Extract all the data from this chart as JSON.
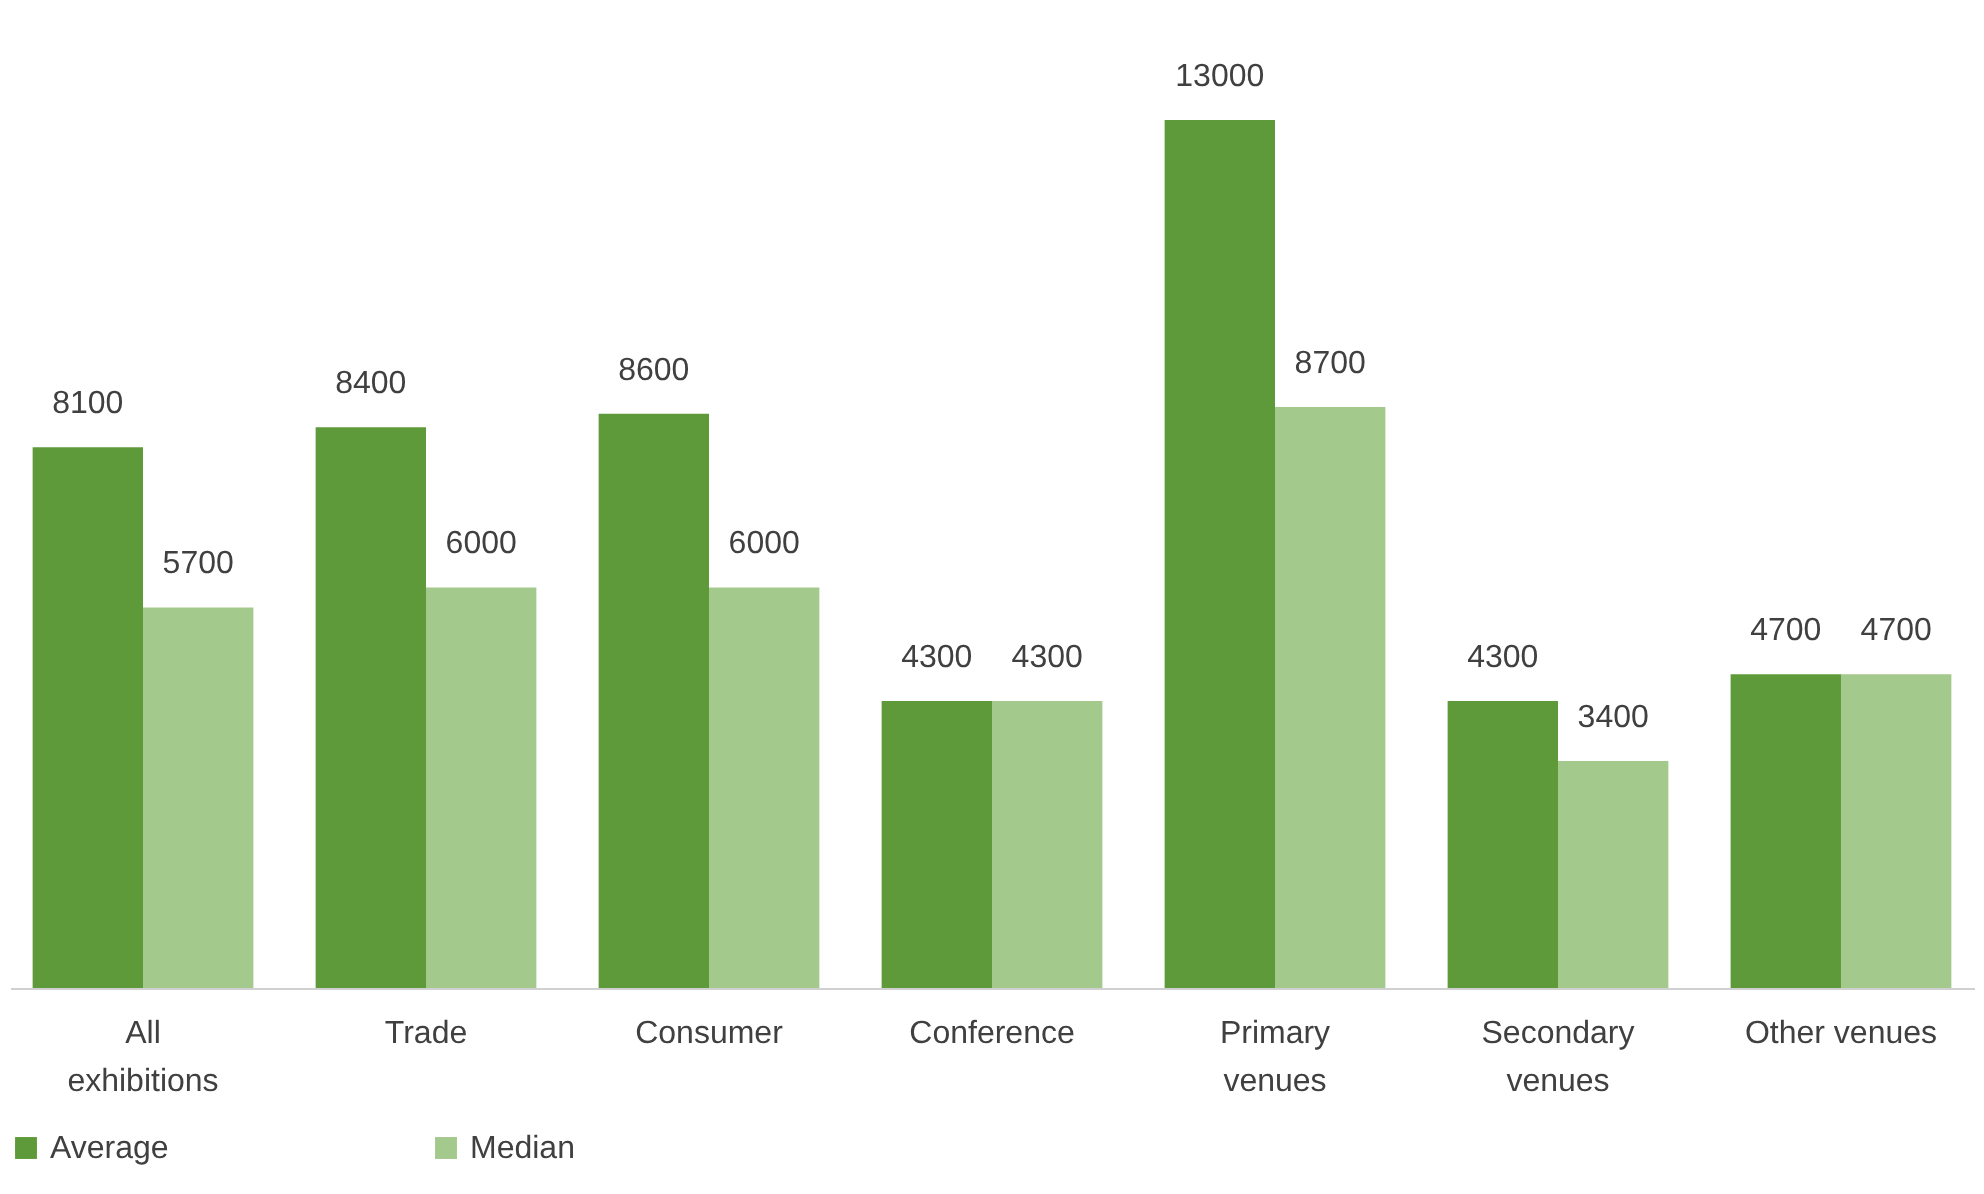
{
  "chart_data": {
    "type": "bar",
    "categories": [
      "All\nexhibitions",
      "Trade",
      "Consumer",
      "Conference",
      "Primary\nvenues",
      "Secondary\nvenues",
      "Other venues"
    ],
    "series": [
      {
        "name": "Average",
        "color": "#5f9a3a",
        "values": [
          8100,
          8400,
          8600,
          4300,
          13000,
          4300,
          4700
        ]
      },
      {
        "name": "Median",
        "color": "#a3c98c",
        "values": [
          5700,
          6000,
          6000,
          4300,
          8700,
          3400,
          4700
        ]
      }
    ],
    "tick_labels": "x",
    "data_labels": true,
    "legend": "bottom",
    "grid": false
  }
}
